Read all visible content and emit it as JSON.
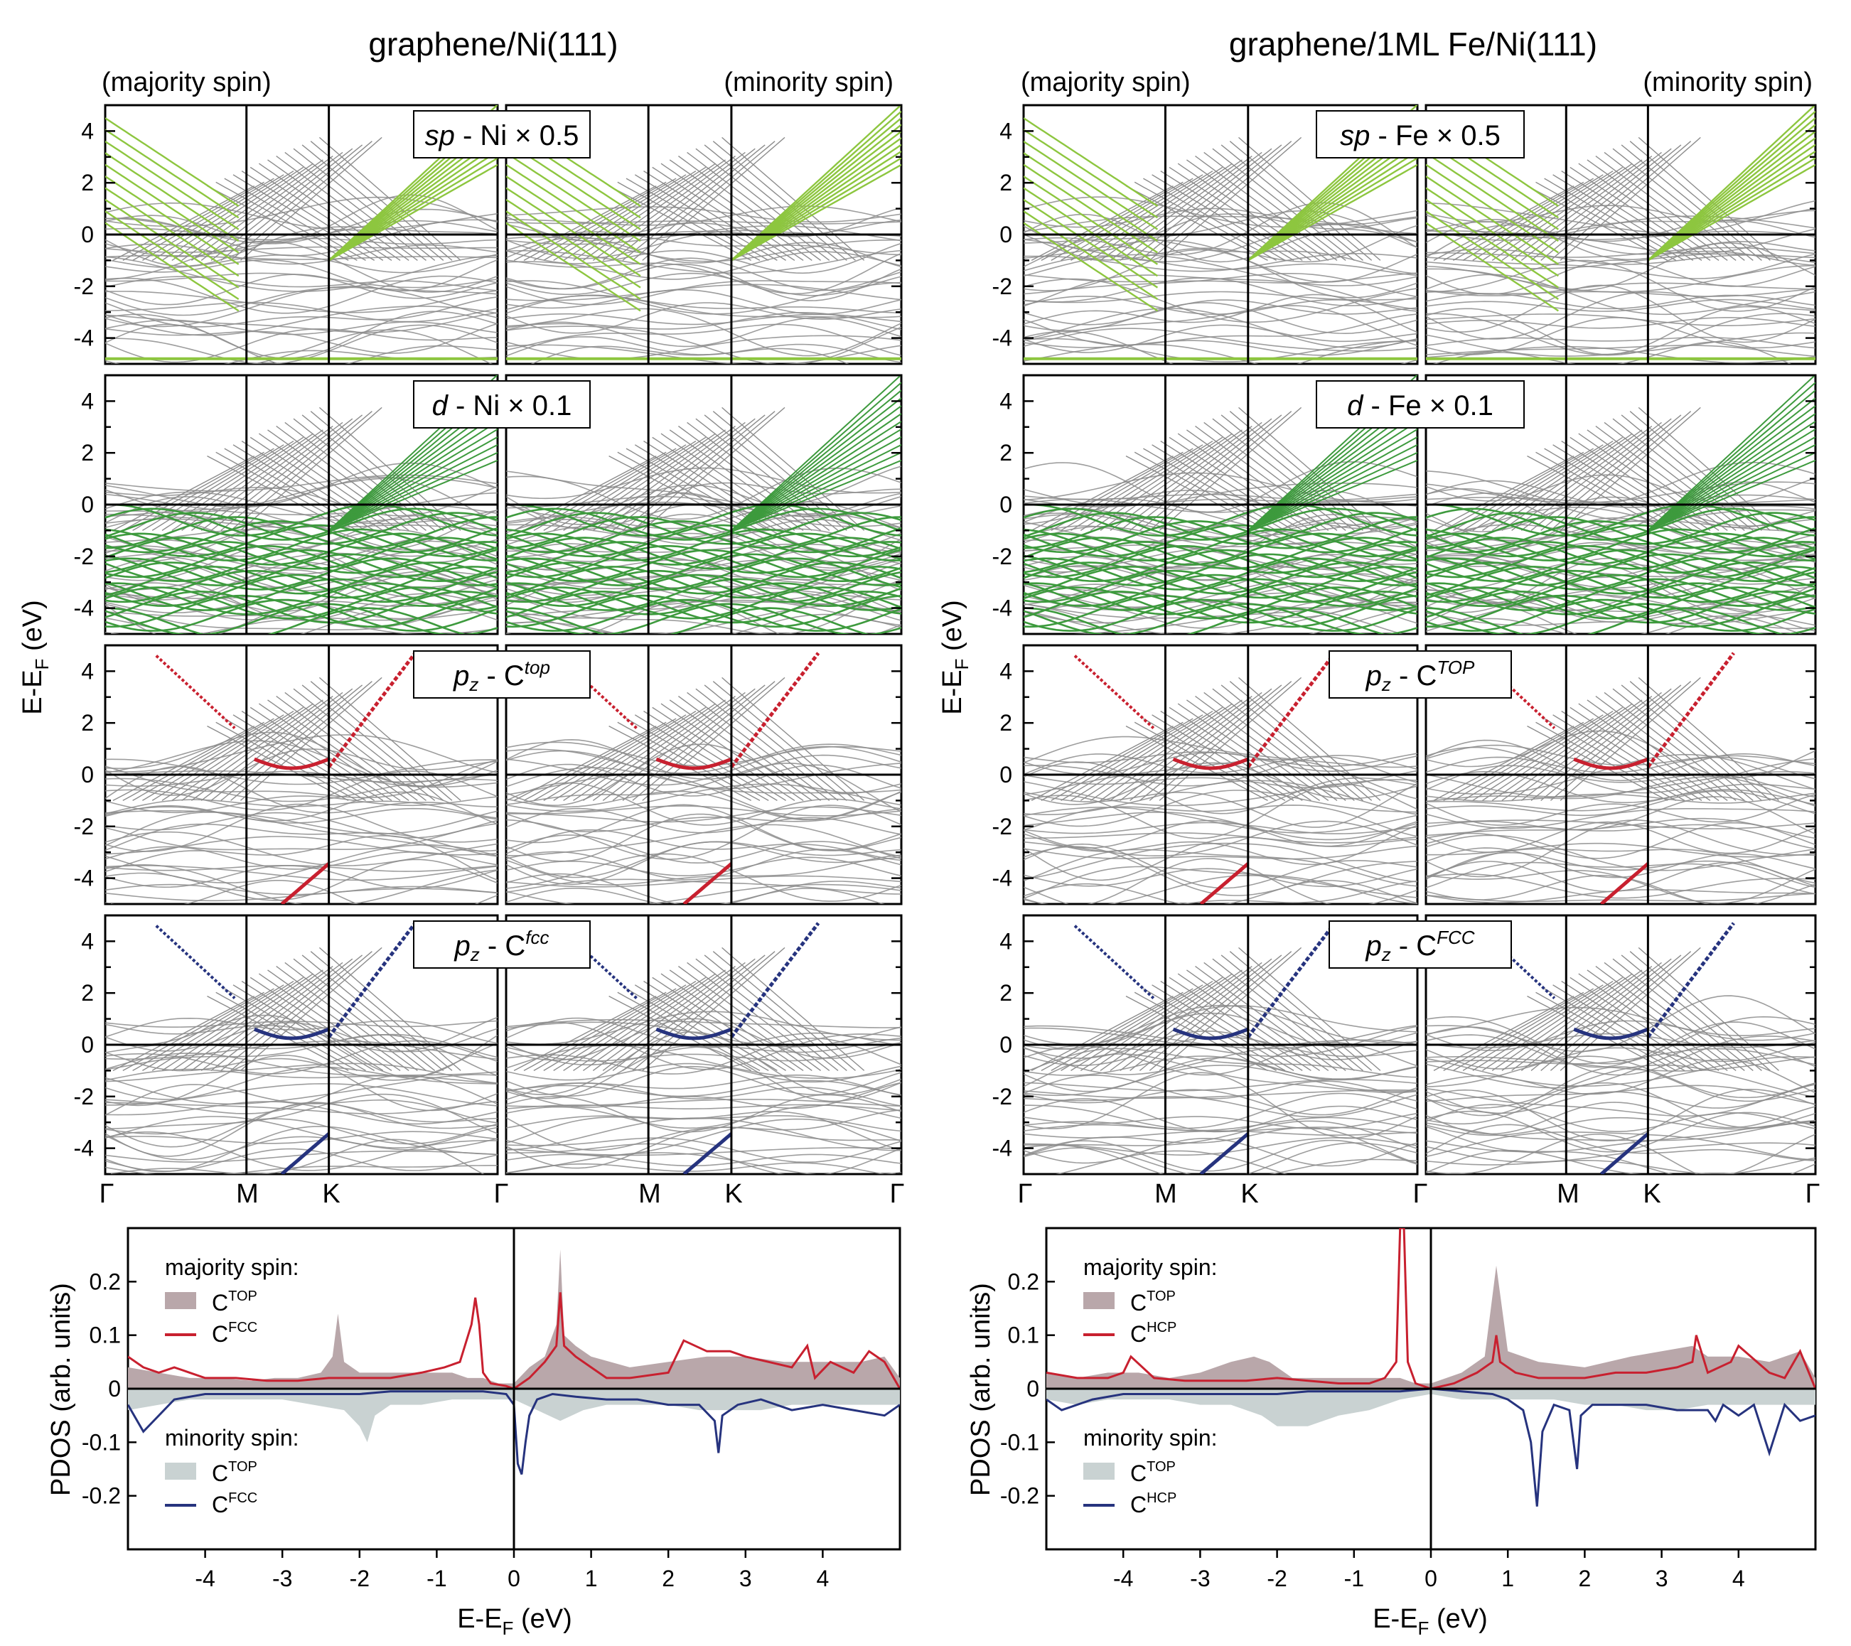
{
  "chart_data": [
    {
      "type": "band_structure",
      "title": "graphene/Ni(111)",
      "spin_labels": {
        "majority": "(majority spin)",
        "minority": "(minority spin)"
      },
      "ylabel": "E-E",
      "ylabel_sub": "F",
      "ylabel_unit": " (eV)",
      "ylim": [
        -5,
        5
      ],
      "yticks": [
        "4",
        "2",
        "0",
        "-2",
        "-4"
      ],
      "kpoints": [
        "Γ",
        "M",
        "K",
        "Γ",
        "M",
        "K",
        "Γ"
      ],
      "panels": [
        {
          "label_main": "sp",
          "label_rest": " - Ni × 0.5",
          "color": "#8dc63f"
        },
        {
          "label_main": "d",
          "label_rest": " - Ni × 0.1",
          "color": "#3d9a3d"
        },
        {
          "label_main": "p",
          "label_sub": "z",
          "label_rest": " - C",
          "label_sup": "top",
          "color": "#c8202f"
        },
        {
          "label_main": "p",
          "label_sub": "z",
          "label_rest": " - C",
          "label_sup": "fcc",
          "color": "#26337e"
        }
      ]
    },
    {
      "type": "band_structure",
      "title": "graphene/1ML Fe/Ni(111)",
      "spin_labels": {
        "majority": "(majority spin)",
        "minority": "(minority spin)"
      },
      "ylabel": "E-E",
      "ylabel_sub": "F",
      "ylabel_unit": " (eV)",
      "ylim": [
        -5,
        5
      ],
      "yticks": [
        "4",
        "2",
        "0",
        "-2",
        "-4"
      ],
      "kpoints": [
        "Γ",
        "M",
        "K",
        "Γ",
        "M",
        "K",
        "Γ"
      ],
      "panels": [
        {
          "label_main": "sp",
          "label_rest": " - Fe × 0.5",
          "color": "#8dc63f"
        },
        {
          "label_main": "d",
          "label_rest": " - Fe × 0.1",
          "color": "#3d9a3d"
        },
        {
          "label_main": "p",
          "label_sub": "z",
          "label_rest": " - C",
          "label_sup": "TOP",
          "color": "#c8202f"
        },
        {
          "label_main": "p",
          "label_sub": "z",
          "label_rest": " - C",
          "label_sup": "FCC",
          "color": "#26337e"
        }
      ]
    },
    {
      "type": "area",
      "title": "",
      "xlabel": "E-E",
      "xlabel_sub": "F",
      "xlabel_unit": " (eV)",
      "ylabel": "PDOS (arb. units)",
      "xlim": [
        -5,
        5
      ],
      "ylim": [
        -0.3,
        0.3
      ],
      "xticks": [
        "-4",
        "-3",
        "-2",
        "-1",
        "0",
        "1",
        "2",
        "3",
        "4"
      ],
      "yticks": [
        "0.2",
        "0.1",
        "0",
        "-0.1",
        "-0.2"
      ],
      "legend": {
        "majority_title": "majority spin:",
        "minority_title": "minority spin:",
        "items": [
          {
            "base": "C",
            "sup": "TOP",
            "style": "fill",
            "color": "#b9a7aa"
          },
          {
            "base": "C",
            "sup": "FCC",
            "style": "line",
            "color": "#c8202f"
          },
          {
            "base": "C",
            "sup": "TOP",
            "style": "fill",
            "color": "#c9d2d2"
          },
          {
            "base": "C",
            "sup": "FCC",
            "style": "line",
            "color": "#26337e"
          }
        ]
      },
      "series": [
        {
          "name": "majority C TOP",
          "x": [
            -5,
            -4.6,
            -4.2,
            -3.8,
            -3.4,
            -3.1,
            -2.8,
            -2.5,
            -2.35,
            -2.28,
            -2.2,
            -2,
            -1.6,
            -1.2,
            -0.8,
            -0.6,
            -0.4,
            -0.2,
            0,
            0.2,
            0.4,
            0.55,
            0.6,
            0.65,
            0.8,
            1,
            1.5,
            2,
            2.5,
            3,
            3.5,
            4,
            4.5,
            4.8,
            5
          ],
          "y": [
            0.04,
            0.03,
            0.02,
            0.02,
            0.015,
            0.02,
            0.02,
            0.03,
            0.06,
            0.14,
            0.05,
            0.03,
            0.03,
            0.03,
            0.03,
            0.02,
            0.02,
            0.01,
            0.01,
            0.04,
            0.06,
            0.12,
            0.26,
            0.1,
            0.08,
            0.06,
            0.04,
            0.05,
            0.06,
            0.06,
            0.05,
            0.05,
            0.05,
            0.06,
            0.02
          ]
        },
        {
          "name": "majority C FCC",
          "x": [
            -5,
            -4.8,
            -4.6,
            -4.4,
            -4.2,
            -4,
            -3.6,
            -3.2,
            -2.8,
            -2.4,
            -2,
            -1.6,
            -1.2,
            -0.9,
            -0.7,
            -0.55,
            -0.5,
            -0.45,
            -0.4,
            -0.3,
            -0.1,
            0,
            0.2,
            0.4,
            0.55,
            0.6,
            0.65,
            0.8,
            1,
            1.2,
            1.5,
            2,
            2.2,
            2.5,
            2.8,
            3,
            3.3,
            3.6,
            3.8,
            3.9,
            4.1,
            4.4,
            4.6,
            4.8,
            5
          ],
          "y": [
            0.06,
            0.04,
            0.03,
            0.04,
            0.03,
            0.02,
            0.02,
            0.015,
            0.015,
            0.02,
            0.02,
            0.02,
            0.03,
            0.04,
            0.05,
            0.12,
            0.17,
            0.12,
            0.03,
            0.01,
            0.005,
            0.0,
            0.02,
            0.05,
            0.08,
            0.18,
            0.08,
            0.06,
            0.04,
            0.02,
            0.02,
            0.03,
            0.09,
            0.07,
            0.07,
            0.06,
            0.05,
            0.04,
            0.08,
            0.02,
            0.05,
            0.03,
            0.07,
            0.05,
            0.0
          ]
        },
        {
          "name": "minority C TOP",
          "x": [
            -5,
            -4.6,
            -4.2,
            -3.8,
            -3.4,
            -3,
            -2.6,
            -2.2,
            -2,
            -1.9,
            -1.8,
            -1.6,
            -1.2,
            -0.8,
            -0.4,
            0,
            0.3,
            0.6,
            0.9,
            1.2,
            1.6,
            2,
            2.4,
            2.8,
            3.2,
            3.6,
            4,
            4.4,
            4.8,
            5
          ],
          "y": [
            -0.04,
            -0.03,
            -0.02,
            -0.02,
            -0.02,
            -0.02,
            -0.03,
            -0.04,
            -0.07,
            -0.1,
            -0.05,
            -0.03,
            -0.03,
            -0.02,
            -0.02,
            -0.02,
            -0.04,
            -0.06,
            -0.04,
            -0.03,
            -0.03,
            -0.03,
            -0.04,
            -0.04,
            -0.04,
            -0.03,
            -0.03,
            -0.03,
            -0.03,
            -0.03
          ]
        },
        {
          "name": "minority C FCC",
          "x": [
            -5,
            -4.8,
            -4.4,
            -4,
            -3.6,
            -3.2,
            -2.8,
            -2.4,
            -2,
            -1.6,
            -1.2,
            -0.8,
            -0.4,
            -0.1,
            0,
            0.05,
            0.1,
            0.15,
            0.2,
            0.3,
            0.5,
            0.8,
            1.2,
            1.6,
            2,
            2.4,
            2.6,
            2.65,
            2.7,
            2.9,
            3.2,
            3.6,
            4,
            4.4,
            4.8,
            5
          ],
          "y": [
            -0.03,
            -0.08,
            -0.02,
            -0.01,
            -0.01,
            -0.01,
            -0.01,
            -0.01,
            -0.01,
            -0.005,
            -0.005,
            -0.005,
            -0.005,
            -0.01,
            -0.03,
            -0.14,
            -0.16,
            -0.1,
            -0.05,
            -0.02,
            -0.01,
            -0.015,
            -0.02,
            -0.02,
            -0.03,
            -0.03,
            -0.06,
            -0.12,
            -0.05,
            -0.03,
            -0.02,
            -0.04,
            -0.03,
            -0.04,
            -0.05,
            -0.03
          ]
        }
      ]
    },
    {
      "type": "area",
      "title": "",
      "xlabel": "E-E",
      "xlabel_sub": "F",
      "xlabel_unit": " (eV)",
      "ylabel": "PDOS (arb. units)",
      "xlim": [
        -5,
        5
      ],
      "ylim": [
        -0.3,
        0.3
      ],
      "xticks": [
        "-4",
        "-3",
        "-2",
        "-1",
        "0",
        "1",
        "2",
        "3",
        "4"
      ],
      "yticks": [
        "0.2",
        "0.1",
        "0",
        "-0.1",
        "-0.2"
      ],
      "legend": {
        "majority_title": "majority spin:",
        "minority_title": "minority spin:",
        "items": [
          {
            "base": "C",
            "sup": "TOP",
            "style": "fill",
            "color": "#b9a7aa"
          },
          {
            "base": "C",
            "sup": "HCP",
            "style": "line",
            "color": "#c8202f"
          },
          {
            "base": "C",
            "sup": "TOP",
            "style": "fill",
            "color": "#c9d2d2"
          },
          {
            "base": "C",
            "sup": "HCP",
            "style": "line",
            "color": "#26337e"
          }
        ]
      },
      "series": [
        {
          "name": "majority C TOP",
          "x": [
            -5,
            -4.6,
            -4.2,
            -3.8,
            -3.4,
            -3,
            -2.6,
            -2.3,
            -2.1,
            -1.8,
            -1.4,
            -1,
            -0.6,
            -0.4,
            -0.2,
            0,
            0.4,
            0.7,
            0.85,
            1,
            1.4,
            2,
            2.6,
            3,
            3.4,
            3.6,
            4,
            4.4,
            4.8,
            5
          ],
          "y": [
            0.03,
            0.02,
            0.03,
            0.03,
            0.02,
            0.03,
            0.05,
            0.06,
            0.05,
            0.02,
            0.02,
            0.02,
            0.02,
            0.02,
            0.01,
            0.01,
            0.03,
            0.06,
            0.23,
            0.07,
            0.05,
            0.04,
            0.06,
            0.07,
            0.08,
            0.06,
            0.06,
            0.05,
            0.07,
            0.02
          ]
        },
        {
          "name": "majority C HCP",
          "x": [
            -5,
            -4.6,
            -4.2,
            -4,
            -3.9,
            -3.6,
            -3.2,
            -2.8,
            -2.4,
            -2,
            -1.6,
            -1.2,
            -0.8,
            -0.6,
            -0.45,
            -0.4,
            -0.35,
            -0.3,
            -0.2,
            0,
            0.3,
            0.6,
            0.8,
            0.85,
            0.9,
            1.1,
            1.4,
            2,
            2.4,
            2.8,
            3.2,
            3.4,
            3.45,
            3.6,
            3.9,
            4,
            4.4,
            4.6,
            4.8,
            5
          ],
          "y": [
            0.03,
            0.02,
            0.02,
            0.03,
            0.06,
            0.02,
            0.015,
            0.015,
            0.015,
            0.02,
            0.015,
            0.01,
            0.01,
            0.02,
            0.05,
            0.3,
            0.3,
            0.05,
            0.01,
            0.0,
            0.01,
            0.03,
            0.05,
            0.1,
            0.05,
            0.03,
            0.02,
            0.02,
            0.03,
            0.03,
            0.04,
            0.05,
            0.1,
            0.03,
            0.05,
            0.08,
            0.03,
            0.02,
            0.07,
            0.0
          ]
        },
        {
          "name": "minority C TOP",
          "x": [
            -5,
            -4.6,
            -4.2,
            -3.8,
            -3.4,
            -3,
            -2.6,
            -2.2,
            -2,
            -1.6,
            -1.2,
            -0.8,
            -0.4,
            0,
            0.4,
            0.8,
            1.2,
            1.6,
            2,
            2.4,
            2.8,
            3.2,
            3.6,
            4,
            4.4,
            4.8,
            5
          ],
          "y": [
            -0.02,
            -0.03,
            -0.02,
            -0.02,
            -0.02,
            -0.03,
            -0.03,
            -0.05,
            -0.07,
            -0.07,
            -0.05,
            -0.04,
            -0.02,
            -0.01,
            -0.02,
            -0.02,
            -0.02,
            -0.02,
            -0.03,
            -0.03,
            -0.04,
            -0.04,
            -0.03,
            -0.03,
            -0.03,
            -0.03,
            -0.03
          ]
        },
        {
          "name": "minority C HCP",
          "x": [
            -5,
            -4.8,
            -4.4,
            -4,
            -3.6,
            -3.2,
            -2.8,
            -2.4,
            -2,
            -1.6,
            -1.2,
            -0.8,
            -0.4,
            0,
            0.4,
            0.8,
            1,
            1.2,
            1.3,
            1.38,
            1.45,
            1.6,
            1.8,
            1.9,
            1.95,
            2.1,
            2.4,
            2.8,
            3.2,
            3.6,
            3.7,
            3.8,
            4,
            4.2,
            4.4,
            4.6,
            4.8,
            5
          ],
          "y": [
            -0.02,
            -0.04,
            -0.02,
            -0.01,
            -0.01,
            -0.01,
            -0.01,
            -0.01,
            -0.01,
            -0.005,
            -0.005,
            -0.005,
            -0.005,
            0.0,
            -0.005,
            -0.01,
            -0.02,
            -0.04,
            -0.1,
            -0.22,
            -0.08,
            -0.03,
            -0.04,
            -0.15,
            -0.05,
            -0.03,
            -0.03,
            -0.03,
            -0.04,
            -0.04,
            -0.06,
            -0.03,
            -0.05,
            -0.03,
            -0.12,
            -0.03,
            -0.06,
            -0.05
          ]
        }
      ]
    }
  ]
}
